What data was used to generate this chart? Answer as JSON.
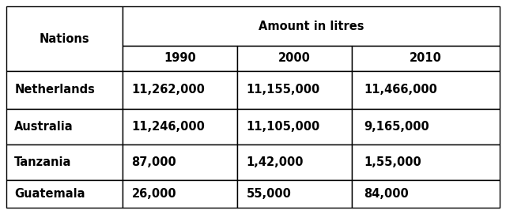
{
  "col_header_top": "Amount in litres",
  "col_header_years": [
    "1990",
    "2000",
    "2010"
  ],
  "row_header": "Nations",
  "nations": [
    "Netherlands",
    "Australia",
    "Tanzania",
    "Guatemala"
  ],
  "values": [
    [
      "11,262,000",
      "11,155,000",
      "11,466,000"
    ],
    [
      "11,246,000",
      "11,105,000",
      "9,165,000"
    ],
    [
      "87,000",
      "1,42,000",
      "1,55,000"
    ],
    [
      "26,000",
      "55,000",
      "84,000"
    ]
  ],
  "bg_color": "#ffffff",
  "text_color": "#000000",
  "border_color": "#000000",
  "header_fontsize": 10.5,
  "cell_fontsize": 10.5
}
